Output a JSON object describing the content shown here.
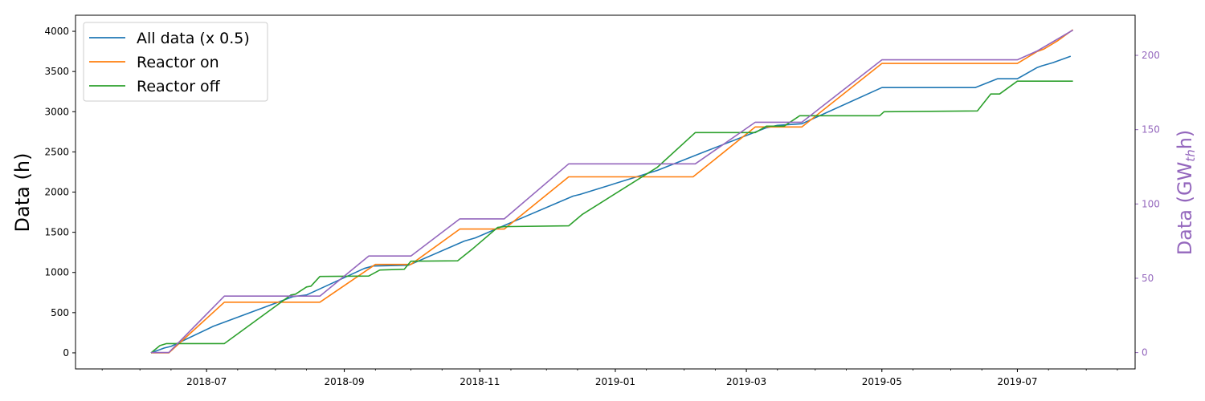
{
  "chart_data": {
    "type": "line",
    "xlabel": "",
    "ylabel": "Data (h)",
    "ylabel_right": {
      "pre": "Data (GW",
      "sub": "th",
      "post": "h)"
    },
    "ylim": [
      -200,
      4200
    ],
    "ylim_right": [
      -11,
      227
    ],
    "xlim": [
      "2018-05-03",
      "2019-08-23"
    ],
    "x_ticks": [
      "2018-07-01",
      "2018-09-01",
      "2018-11-01",
      "2019-01-01",
      "2019-03-01",
      "2019-05-01",
      "2019-07-01"
    ],
    "x_tick_labels": [
      "2018-07",
      "2018-09",
      "2018-11",
      "2019-01",
      "2019-03",
      "2019-05",
      "2019-07"
    ],
    "y_ticks": [
      0,
      500,
      1000,
      1500,
      2000,
      2500,
      3000,
      3500,
      4000
    ],
    "y_ticks_right": [
      0,
      50,
      100,
      150,
      200
    ],
    "grid": false,
    "legend_position": "top-left",
    "colors": {
      "right_axis": "#9467bd"
    },
    "series": [
      {
        "name": "All data (x 0.5)",
        "color": "#1f77b4",
        "axis": "left",
        "points": [
          [
            "2018-06-06",
            0
          ],
          [
            "2018-06-12",
            60
          ],
          [
            "2018-06-15",
            80
          ],
          [
            "2018-07-04",
            330
          ],
          [
            "2018-08-09",
            700
          ],
          [
            "2018-08-15",
            720
          ],
          [
            "2018-09-10",
            1050
          ],
          [
            "2018-09-14",
            1080
          ],
          [
            "2018-09-30",
            1090
          ],
          [
            "2018-10-25",
            1390
          ],
          [
            "2018-10-30",
            1430
          ],
          [
            "2018-12-13",
            1950
          ],
          [
            "2018-12-16",
            1970
          ],
          [
            "2019-01-20",
            2270
          ],
          [
            "2019-02-10",
            2500
          ],
          [
            "2019-03-10",
            2800
          ],
          [
            "2019-03-15",
            2830
          ],
          [
            "2019-03-26",
            2850
          ],
          [
            "2019-05-01",
            3300
          ],
          [
            "2019-06-12",
            3300
          ],
          [
            "2019-06-22",
            3410
          ],
          [
            "2019-07-01",
            3410
          ],
          [
            "2019-07-10",
            3550
          ],
          [
            "2019-07-12",
            3570
          ],
          [
            "2019-07-17",
            3610
          ],
          [
            "2019-07-25",
            3690
          ]
        ]
      },
      {
        "name": "Reactor on",
        "color": "#ff7f0e",
        "axis": "left",
        "points": [
          [
            "2018-06-06",
            0
          ],
          [
            "2018-06-14",
            0
          ],
          [
            "2018-07-09",
            630
          ],
          [
            "2018-08-21",
            630
          ],
          [
            "2018-09-15",
            1100
          ],
          [
            "2018-10-01",
            1100
          ],
          [
            "2018-10-23",
            1540
          ],
          [
            "2018-11-12",
            1540
          ],
          [
            "2018-12-11",
            2190
          ],
          [
            "2019-02-05",
            2190
          ],
          [
            "2019-02-10",
            2300
          ],
          [
            "2019-03-05",
            2810
          ],
          [
            "2019-03-26",
            2810
          ],
          [
            "2019-05-01",
            3600
          ],
          [
            "2019-07-01",
            3600
          ],
          [
            "2019-07-10",
            3750
          ],
          [
            "2019-07-13",
            3780
          ],
          [
            "2019-07-19",
            3880
          ],
          [
            "2019-07-26",
            4020
          ]
        ]
      },
      {
        "name": "Reactor off",
        "color": "#2ca02c",
        "axis": "left",
        "points": [
          [
            "2018-06-06",
            0
          ],
          [
            "2018-06-10",
            90
          ],
          [
            "2018-06-13",
            115
          ],
          [
            "2018-07-09",
            115
          ],
          [
            "2018-08-08",
            720
          ],
          [
            "2018-08-10",
            730
          ],
          [
            "2018-08-15",
            820
          ],
          [
            "2018-08-17",
            830
          ],
          [
            "2018-08-21",
            950
          ],
          [
            "2018-09-12",
            955
          ],
          [
            "2018-09-17",
            1030
          ],
          [
            "2018-09-28",
            1040
          ],
          [
            "2018-10-01",
            1140
          ],
          [
            "2018-10-22",
            1145
          ],
          [
            "2018-10-29",
            1300
          ],
          [
            "2018-11-09",
            1560
          ],
          [
            "2018-11-12",
            1570
          ],
          [
            "2018-12-11",
            1580
          ],
          [
            "2018-12-17",
            1720
          ],
          [
            "2019-01-20",
            2310
          ],
          [
            "2019-02-06",
            2740
          ],
          [
            "2019-03-05",
            2740
          ],
          [
            "2019-03-10",
            2820
          ],
          [
            "2019-03-18",
            2820
          ],
          [
            "2019-03-25",
            2950
          ],
          [
            "2019-04-30",
            2950
          ],
          [
            "2019-05-02",
            3000
          ],
          [
            "2019-06-13",
            3010
          ],
          [
            "2019-06-19",
            3220
          ],
          [
            "2019-06-23",
            3220
          ],
          [
            "2019-07-01",
            3380
          ],
          [
            "2019-07-26",
            3380
          ]
        ]
      },
      {
        "name": "",
        "color": "#9467bd",
        "axis": "right",
        "points": [
          [
            "2018-06-06",
            0
          ],
          [
            "2018-06-14",
            0
          ],
          [
            "2018-07-09",
            38
          ],
          [
            "2018-08-21",
            38
          ],
          [
            "2018-09-12",
            65
          ],
          [
            "2018-10-01",
            65
          ],
          [
            "2018-10-23",
            90
          ],
          [
            "2018-11-12",
            90
          ],
          [
            "2018-12-11",
            127
          ],
          [
            "2019-02-06",
            127
          ],
          [
            "2019-03-05",
            155
          ],
          [
            "2019-03-26",
            155
          ],
          [
            "2019-05-01",
            197
          ],
          [
            "2019-07-01",
            197
          ],
          [
            "2019-07-10",
            203
          ],
          [
            "2019-07-26",
            217
          ]
        ]
      }
    ]
  }
}
